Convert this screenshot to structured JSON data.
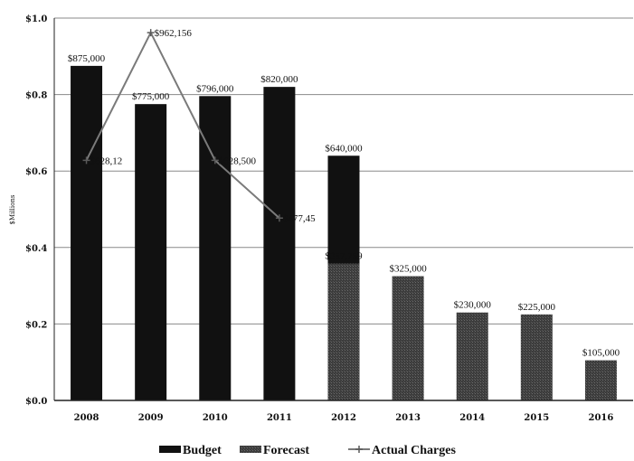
{
  "chart_data": {
    "type": "bar",
    "categories": [
      "2008",
      "2009",
      "2010",
      "2011",
      "2012",
      "2013",
      "2014",
      "2015",
      "2016"
    ],
    "ylabel": "$Millions",
    "ylim": [
      0,
      1.0
    ],
    "yticks": [
      "$0.0",
      "$0.2",
      "$0.4",
      "$0.6",
      "$0.8",
      "$1.0"
    ],
    "grid": true,
    "legend_position": "bottom",
    "series": [
      {
        "name": "Budget",
        "type": "bar",
        "color": "#111111",
        "values": [
          0.875,
          0.775,
          0.796,
          0.82,
          0.64,
          null,
          null,
          null,
          null
        ],
        "labels": [
          "$875,000",
          "$775,000",
          "$796,000",
          "$820,000",
          "$640,000",
          "",
          "",
          "",
          ""
        ]
      },
      {
        "name": "Forecast",
        "type": "bar",
        "color": "#3a3a3a",
        "values": [
          null,
          null,
          null,
          null,
          0.358,
          0.325,
          0.23,
          0.225,
          0.105
        ],
        "labels": [
          "",
          "",
          "",
          "",
          "$357,759",
          "$325,000",
          "$230,000",
          "$225,000",
          "$105,000"
        ]
      },
      {
        "name": "Actual Charges",
        "type": "line",
        "color": "#7a7a7a",
        "values": [
          0.628,
          0.962,
          0.628,
          0.477,
          null,
          null,
          null,
          null,
          null
        ],
        "labels": [
          "$628,12",
          "$962,156",
          "$628,500",
          "$477,45",
          "",
          "",
          "",
          "",
          ""
        ]
      }
    ]
  }
}
